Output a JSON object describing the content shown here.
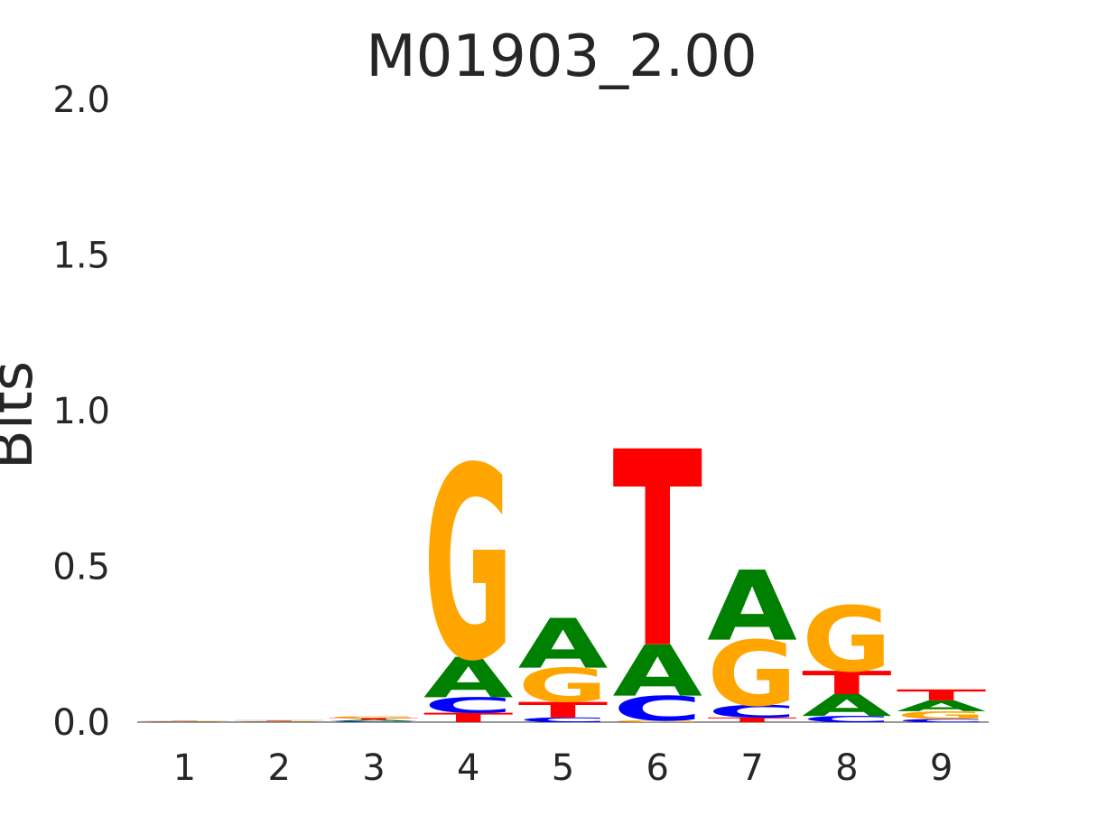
{
  "chart_data": {
    "type": "sequence-logo",
    "title": "M01903_2.00",
    "y_label": "Bits",
    "categories": [
      "1",
      "2",
      "3",
      "4",
      "5",
      "6",
      "7",
      "8",
      "9"
    ],
    "series": [
      {
        "name": "A",
        "color": "#008000",
        "values": [
          0.001,
          0.001,
          0.005,
          0.13,
          0.16,
          0.165,
          0.225,
          0.07,
          0.035
        ]
      },
      {
        "name": "C",
        "color": "#0000ff",
        "values": [
          0.001,
          0.001,
          0.003,
          0.05,
          0.015,
          0.08,
          0.04,
          0.02,
          0.01
        ]
      },
      {
        "name": "G",
        "color": "#ffa500",
        "values": [
          0.001,
          0.002,
          0.006,
          0.62,
          0.11,
          0.005,
          0.21,
          0.21,
          0.025
        ]
      },
      {
        "name": "T",
        "color": "#ff0000",
        "values": [
          0.001,
          0.002,
          0.005,
          0.03,
          0.05,
          0.63,
          0.015,
          0.075,
          0.035
        ]
      }
    ],
    "ylim": [
      0,
      2
    ],
    "yticks": [
      {
        "value": 0,
        "label": "0.0"
      },
      {
        "value": 0.5,
        "label": "0.5"
      },
      {
        "value": 1,
        "label": "1.0"
      },
      {
        "value": 1.5,
        "label": "1.5"
      },
      {
        "value": 2,
        "label": "2.0"
      }
    ]
  }
}
